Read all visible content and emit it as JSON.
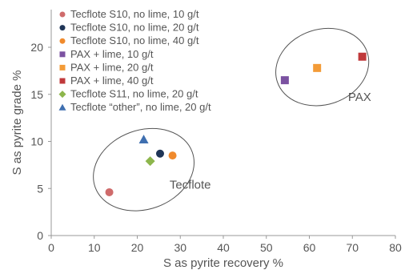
{
  "chart_data": {
    "type": "scatter",
    "xlabel": "S as pyrite recovery %",
    "ylabel": "S as pyrite grade %",
    "xlim": [
      0,
      80
    ],
    "ylim": [
      0,
      24
    ],
    "x_ticks": [
      "0",
      "10",
      "20",
      "30",
      "40",
      "50",
      "60",
      "70",
      "80"
    ],
    "y_ticks": [
      "0",
      "5",
      "10",
      "15",
      "20"
    ],
    "x_tick_values": [
      0,
      10,
      20,
      30,
      40,
      50,
      60,
      70,
      80
    ],
    "y_tick_values": [
      0,
      5,
      10,
      15,
      20
    ],
    "grid": false,
    "legend_position": "top-left",
    "series": [
      {
        "name": "Tecflote S10, no lime, 10 g/t",
        "marker": "circle",
        "color": "#cf6b6b",
        "points": [
          {
            "x": 13.5,
            "y": 4.6
          }
        ]
      },
      {
        "name": "Tecflote S10, no lime, 20 g/t",
        "marker": "circle",
        "color": "#1f3557",
        "points": [
          {
            "x": 25.3,
            "y": 8.7
          }
        ]
      },
      {
        "name": "Tecflote S10, no lime, 40 g/t",
        "marker": "circle",
        "color": "#f08a2c",
        "points": [
          {
            "x": 28.2,
            "y": 8.5
          }
        ]
      },
      {
        "name": "PAX + lime, 10 g/t",
        "marker": "square",
        "color": "#7b52a1",
        "points": [
          {
            "x": 54.3,
            "y": 16.5
          }
        ]
      },
      {
        "name": "PAX + lime, 20 g/t",
        "marker": "square",
        "color": "#f39b37",
        "points": [
          {
            "x": 61.8,
            "y": 17.8
          }
        ]
      },
      {
        "name": "PAX + lime, 40 g/t",
        "marker": "square",
        "color": "#c0393b",
        "points": [
          {
            "x": 72.3,
            "y": 19.0
          }
        ]
      },
      {
        "name": "Tecflote S11, no lime, 20 g/t",
        "marker": "diamond",
        "color": "#8db64c",
        "points": [
          {
            "x": 23.0,
            "y": 7.9
          }
        ]
      },
      {
        "name": "Tecflote “other”, no lime, 20 g/t",
        "marker": "triangle",
        "color": "#3f6fb0",
        "points": [
          {
            "x": 21.5,
            "y": 10.2
          }
        ]
      }
    ],
    "groups": [
      {
        "label": "Tecflote",
        "center": [
          21.5,
          7.0
        ],
        "rx": 12.0,
        "ry": 4.2,
        "rotation_deg": -20,
        "label_at": [
          27.5,
          5.0
        ]
      },
      {
        "label": "PAX",
        "center": [
          63.0,
          17.9
        ],
        "rx": 11.0,
        "ry": 4.0,
        "rotation_deg": -18,
        "label_at": [
          69.0,
          14.3
        ]
      }
    ]
  }
}
